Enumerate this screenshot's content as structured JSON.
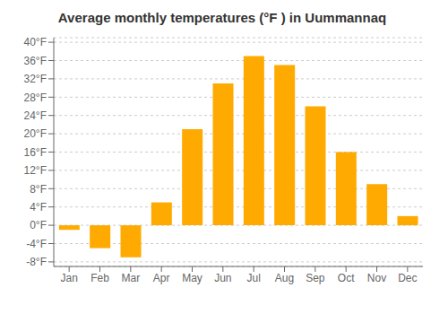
{
  "chart_data": {
    "type": "bar",
    "title": "Average monthly temperatures (°F ) in Uummannaq",
    "categories": [
      "Jan",
      "Feb",
      "Mar",
      "Apr",
      "May",
      "Jun",
      "Jul",
      "Aug",
      "Sep",
      "Oct",
      "Nov",
      "Dec"
    ],
    "values": [
      -1,
      -5,
      -7,
      5,
      21,
      31,
      37,
      35,
      26,
      16,
      9,
      2
    ],
    "color": "#FFAA00",
    "ylim": [
      -9,
      41
    ],
    "yticks": [
      {
        "value": -8,
        "label": "-8°F"
      },
      {
        "value": -4,
        "label": "-4°F"
      },
      {
        "value": 0,
        "label": "0°F"
      },
      {
        "value": 4,
        "label": "4°F"
      },
      {
        "value": 8,
        "label": "8°F"
      },
      {
        "value": 12,
        "label": "12°F"
      },
      {
        "value": 16,
        "label": "16°F"
      },
      {
        "value": 20,
        "label": "20°F"
      },
      {
        "value": 24,
        "label": "24°F"
      },
      {
        "value": 28,
        "label": "28°F"
      },
      {
        "value": 32,
        "label": "32°F"
      },
      {
        "value": 36,
        "label": "36°F"
      },
      {
        "value": 40,
        "label": "40°F"
      }
    ],
    "grid": true
  }
}
